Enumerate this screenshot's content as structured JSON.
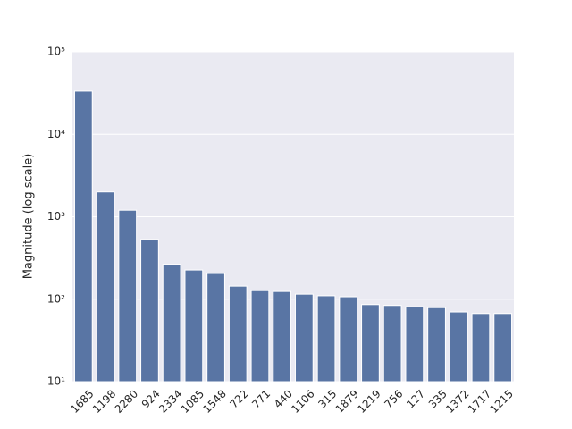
{
  "chart_data": {
    "type": "bar",
    "log_scale": true,
    "grid": true,
    "color": "#5975a4",
    "y_label": "Magnitude (log scale)",
    "categories": [
      "1685",
      "1198",
      "2280",
      "924",
      "2334",
      "1085",
      "1548",
      "722",
      "771",
      "440",
      "1106",
      "315",
      "1879",
      "1219",
      "756",
      "127",
      "335",
      "1372",
      "1717",
      "1215"
    ],
    "values": [
      33400,
      2000,
      1200,
      530,
      265,
      226,
      205,
      144,
      127,
      124,
      115,
      110,
      107,
      86,
      84,
      81,
      79,
      70,
      67,
      67
    ],
    "ylim": [
      10,
      100000
    ],
    "yticks": [
      {
        "value": 10,
        "label": "10¹"
      },
      {
        "value": 100,
        "label": "10²"
      },
      {
        "value": 1000,
        "label": "10³"
      },
      {
        "value": 10000,
        "label": "10⁴"
      },
      {
        "value": 100000,
        "label": "10⁵"
      }
    ]
  }
}
